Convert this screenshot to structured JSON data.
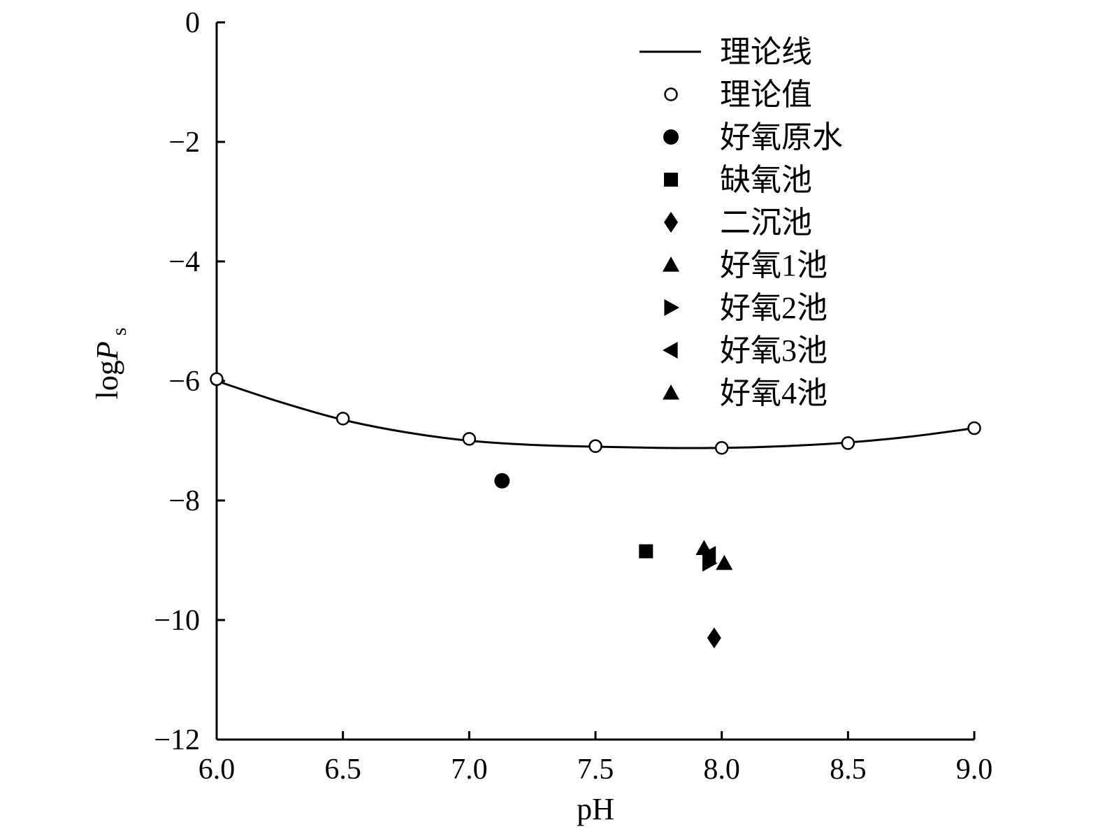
{
  "chart_data": {
    "type": "scatter",
    "xlabel": "pH",
    "ylabel": {
      "base": "log",
      "symbol": "P",
      "subscript": "s"
    },
    "xlim": [
      6.0,
      9.0
    ],
    "ylim": [
      -12,
      0
    ],
    "x_ticks": [
      "6.0",
      "6.5",
      "7.0",
      "7.5",
      "8.0",
      "8.5",
      "9.0"
    ],
    "y_ticks": [
      "0",
      "−2",
      "−4",
      "−6",
      "−8",
      "−10",
      "−12"
    ],
    "legend_position": "top-right",
    "grid": false,
    "series": [
      {
        "name": "理论线",
        "marker": "line",
        "x": [
          6.0,
          6.25,
          6.5,
          6.75,
          7.0,
          7.25,
          7.5,
          7.75,
          8.0,
          8.25,
          8.5,
          8.75,
          9.0
        ],
        "y": [
          -6.0,
          -6.35,
          -6.65,
          -6.86,
          -7.0,
          -7.07,
          -7.1,
          -7.12,
          -7.12,
          -7.09,
          -7.03,
          -6.93,
          -6.79
        ]
      },
      {
        "name": "理论值",
        "marker": "circle-open",
        "x": [
          6.0,
          6.5,
          7.0,
          7.5,
          8.0,
          8.5,
          9.0
        ],
        "y": [
          -5.97,
          -6.63,
          -6.97,
          -7.09,
          -7.12,
          -7.04,
          -6.79
        ]
      },
      {
        "name": "好氧原水",
        "marker": "circle",
        "x": [
          7.13
        ],
        "y": [
          -7.67
        ]
      },
      {
        "name": "缺氧池",
        "marker": "square",
        "x": [
          7.7
        ],
        "y": [
          -8.85
        ]
      },
      {
        "name": "二沉池",
        "marker": "diamond",
        "x": [
          7.97
        ],
        "y": [
          -10.3
        ]
      },
      {
        "name": "好氧1池",
        "marker": "triangle-up",
        "x": [
          7.93
        ],
        "y": [
          -8.8
        ]
      },
      {
        "name": "好氧2池",
        "marker": "triangle-right",
        "x": [
          7.95
        ],
        "y": [
          -9.05
        ]
      },
      {
        "name": "好氧3池",
        "marker": "triangle-left",
        "x": [
          7.95
        ],
        "y": [
          -8.9
        ]
      },
      {
        "name": "好氧4池",
        "marker": "triangle-up",
        "x": [
          8.01
        ],
        "y": [
          -9.05
        ]
      }
    ]
  }
}
